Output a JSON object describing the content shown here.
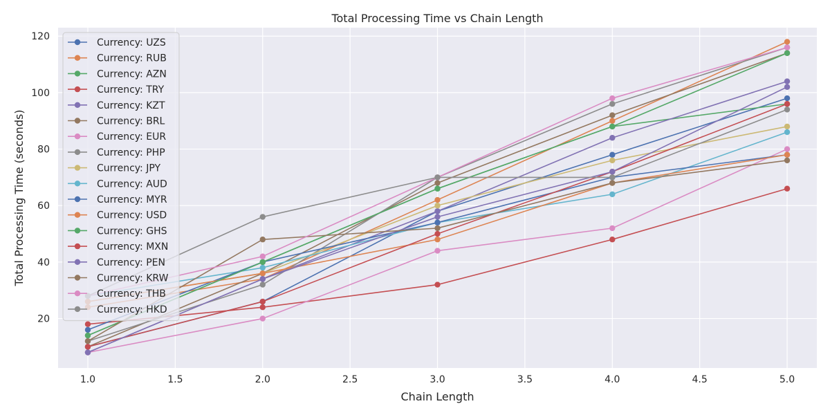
{
  "chart_data": {
    "type": "line",
    "title": "Total Processing Time vs Chain Length",
    "xlabel": "Chain Length",
    "ylabel": "Total Processing Time (seconds)",
    "xlim": [
      0.83,
      5.17
    ],
    "ylim": [
      2.5,
      123
    ],
    "xticks": [
      1.0,
      1.5,
      2.0,
      2.5,
      3.0,
      3.5,
      4.0,
      4.5,
      5.0
    ],
    "xtick_labels": [
      "1.0",
      "1.5",
      "2.0",
      "2.5",
      "3.0",
      "3.5",
      "4.0",
      "4.5",
      "5.0"
    ],
    "yticks": [
      20,
      40,
      60,
      80,
      100,
      120
    ],
    "ytick_labels": [
      "20",
      "40",
      "60",
      "80",
      "100",
      "120"
    ],
    "grid": true,
    "legend_position": "upper-left",
    "x": [
      1,
      2,
      3,
      4,
      5
    ],
    "series": [
      {
        "name": "Currency: UZS",
        "color": "#4c72b0",
        "values": [
          10,
          26,
          58,
          78,
          98
        ]
      },
      {
        "name": "Currency: RUB",
        "color": "#dd8452",
        "values": [
          24,
          34,
          62,
          90,
          118
        ]
      },
      {
        "name": "Currency: AZN",
        "color": "#55a868",
        "values": [
          14,
          40,
          66,
          88,
          96
        ]
      },
      {
        "name": "Currency: TRY",
        "color": "#c44e52",
        "values": [
          18,
          24,
          32,
          48,
          66
        ]
      },
      {
        "name": "Currency: KZT",
        "color": "#8172b3",
        "values": [
          8,
          34,
          58,
          84,
          104
        ]
      },
      {
        "name": "Currency: BRL",
        "color": "#937860",
        "values": [
          10,
          36,
          68,
          92,
          114
        ]
      },
      {
        "name": "Currency: EUR",
        "color": "#da8bc3",
        "values": [
          8,
          20,
          44,
          52,
          80
        ]
      },
      {
        "name": "Currency: PHP",
        "color": "#8c8c8c",
        "values": [
          12,
          32,
          70,
          96,
          116
        ]
      },
      {
        "name": "Currency: JPY",
        "color": "#ccb974",
        "values": [
          26,
          36,
          60,
          76,
          88
        ]
      },
      {
        "name": "Currency: AUD",
        "color": "#64b5cd",
        "values": [
          28,
          38,
          54,
          64,
          86
        ]
      },
      {
        "name": "Currency: MYR",
        "color": "#4c72b0",
        "values": [
          16,
          40,
          54,
          70,
          78
        ]
      },
      {
        "name": "Currency: USD",
        "color": "#dd8452",
        "values": [
          26,
          36,
          48,
          68,
          78
        ]
      },
      {
        "name": "Currency: GHS",
        "color": "#55a868",
        "values": [
          14,
          40,
          66,
          88,
          114
        ]
      },
      {
        "name": "Currency: MXN",
        "color": "#c44e52",
        "values": [
          10,
          26,
          50,
          72,
          96
        ]
      },
      {
        "name": "Currency: PEN",
        "color": "#8172b3",
        "values": [
          8,
          34,
          56,
          72,
          102
        ]
      },
      {
        "name": "Currency: KRW",
        "color": "#937860",
        "values": [
          12,
          48,
          52,
          68,
          76
        ]
      },
      {
        "name": "Currency: THB",
        "color": "#da8bc3",
        "values": [
          28,
          42,
          70,
          98,
          116
        ]
      },
      {
        "name": "Currency: HKD",
        "color": "#8c8c8c",
        "values": [
          28,
          56,
          70,
          70,
          94
        ]
      }
    ]
  }
}
